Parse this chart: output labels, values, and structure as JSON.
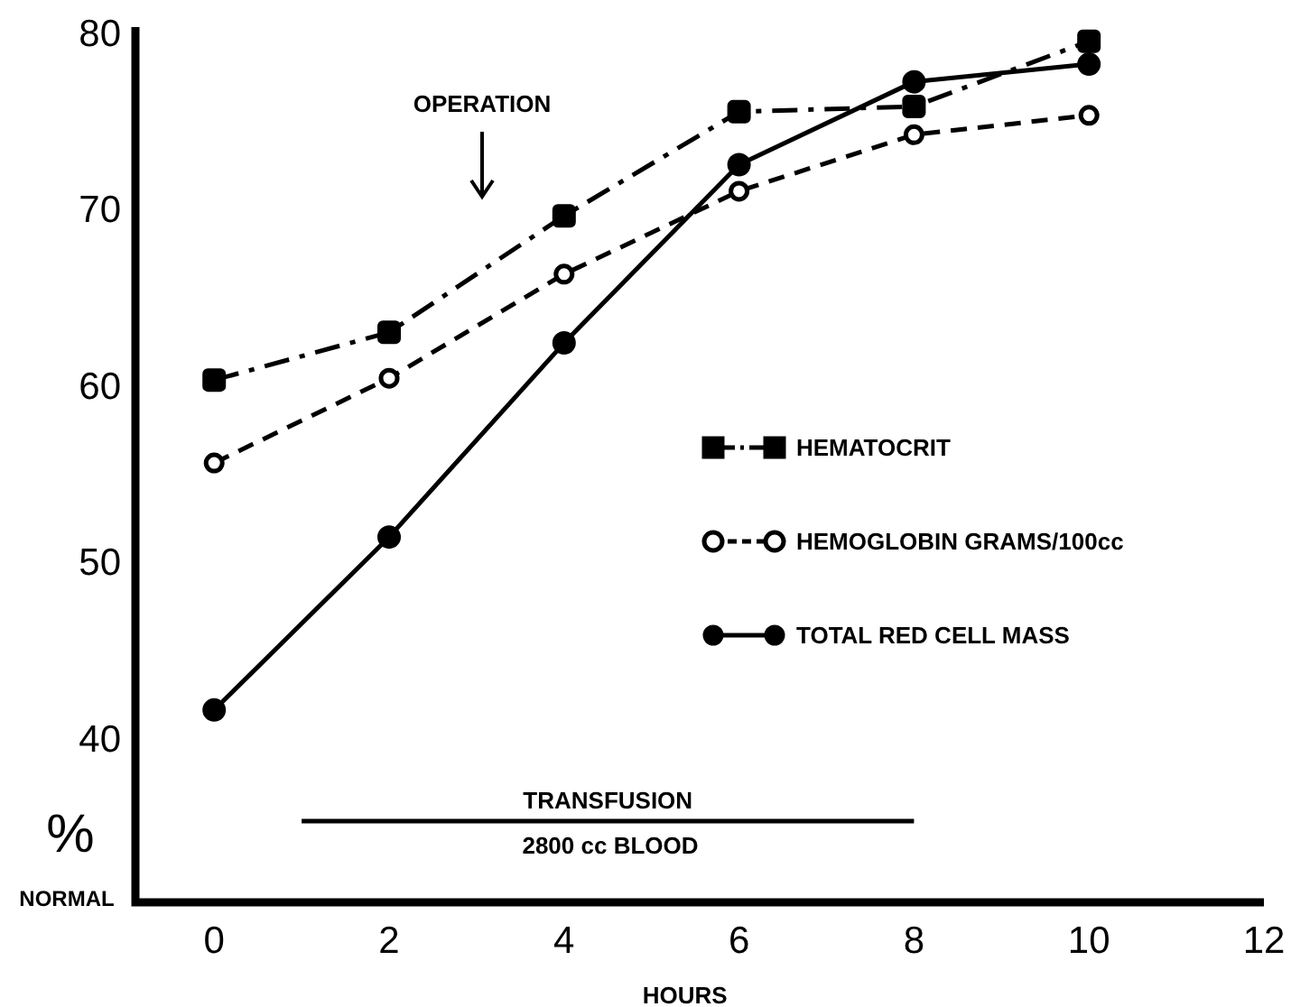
{
  "chart_data": {
    "type": "line",
    "xlabel": "HOURS",
    "ylabel": "% NORMAL",
    "x": [
      0,
      2,
      4,
      6,
      8,
      10
    ],
    "xlim": [
      -0.9,
      12
    ],
    "xticks": [
      0,
      2,
      4,
      6,
      8,
      10,
      12
    ],
    "ylim": [
      30.7,
      80.3
    ],
    "yticks": [
      40,
      50,
      60,
      70,
      80
    ],
    "series": [
      {
        "name": "HEMATOCRIT",
        "color": "#000000",
        "marker": "square",
        "line_style": "dashdot",
        "values": [
          60.3,
          63.0,
          69.6,
          75.5,
          75.8,
          79.5
        ]
      },
      {
        "name": "HEMOGLOBIN GRAMS/100cc",
        "color": "#000000",
        "marker": "circle-open",
        "line_style": "dashed",
        "values": [
          55.6,
          60.4,
          66.3,
          71.0,
          74.2,
          75.3
        ]
      },
      {
        "name": "TOTAL RED CELL MASS",
        "color": "#000000",
        "marker": "circle",
        "line_style": "solid",
        "values": [
          41.6,
          51.4,
          62.4,
          72.5,
          77.2,
          78.2
        ]
      },
      {
        "name": "TRANSFUSION",
        "color": "#000000",
        "marker": "none",
        "line_style": "solid",
        "x": [
          1,
          8
        ],
        "values": [
          35.3,
          35.3
        ]
      }
    ],
    "annotations": [
      "OPERATION",
      "2800 cc BLOOD"
    ],
    "legend": "right",
    "grid": false
  }
}
